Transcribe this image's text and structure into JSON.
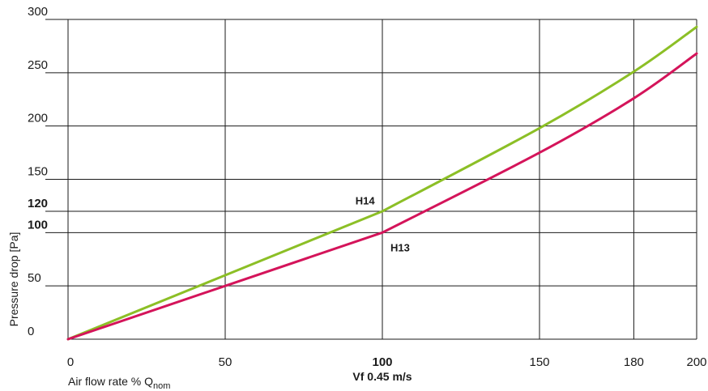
{
  "chart_data": {
    "type": "line",
    "ylabel": "Pressure drop [Pa]",
    "xlabel_main": "Air flow rate % Q",
    "xlabel_sub": "nom",
    "x_secondary_label": "Vf 0.45 m/s",
    "xlim": [
      0,
      200
    ],
    "ylim": [
      0,
      300
    ],
    "grid": true,
    "x_ticks": [
      {
        "value": 0,
        "label": "0",
        "bold": false
      },
      {
        "value": 50,
        "label": "50",
        "bold": false
      },
      {
        "value": 100,
        "label": "100",
        "bold": true
      },
      {
        "value": 150,
        "label": "150",
        "bold": false
      },
      {
        "value": 180,
        "label": "180",
        "bold": false
      },
      {
        "value": 200,
        "label": "200",
        "bold": false
      }
    ],
    "y_ticks": [
      {
        "value": 0,
        "label": "0",
        "bold": false
      },
      {
        "value": 50,
        "label": "50",
        "bold": false
      },
      {
        "value": 100,
        "label": "100",
        "bold": true
      },
      {
        "value": 120,
        "label": "120",
        "bold": true
      },
      {
        "value": 150,
        "label": "150",
        "bold": false
      },
      {
        "value": 200,
        "label": "200",
        "bold": false
      },
      {
        "value": 250,
        "label": "250",
        "bold": false
      },
      {
        "value": 300,
        "label": "300",
        "bold": false
      }
    ],
    "series": [
      {
        "name": "H14",
        "color": "#8cbf26",
        "label_at": [
          95,
          122
        ],
        "points": [
          [
            0,
            0
          ],
          [
            50,
            60
          ],
          [
            100,
            120
          ],
          [
            150,
            198
          ],
          [
            180,
            251
          ],
          [
            200,
            293
          ]
        ]
      },
      {
        "name": "H13",
        "color": "#d4145a",
        "label_at": [
          103,
          96
        ],
        "points": [
          [
            0,
            0
          ],
          [
            50,
            50
          ],
          [
            100,
            100
          ],
          [
            150,
            175
          ],
          [
            180,
            226
          ],
          [
            200,
            268
          ]
        ]
      }
    ]
  }
}
